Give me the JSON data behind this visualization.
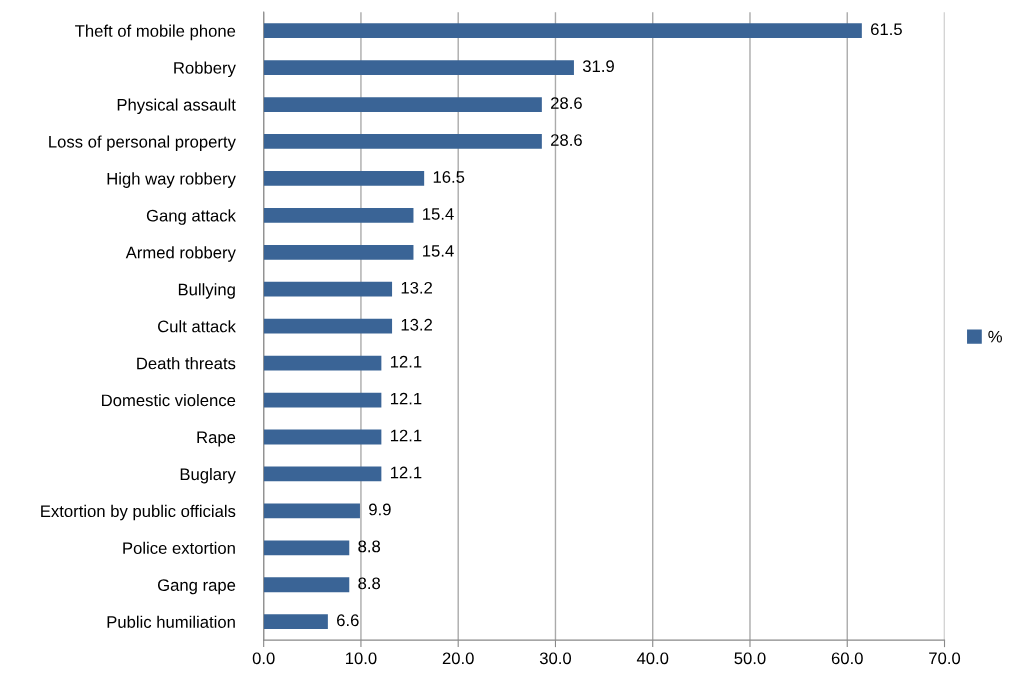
{
  "chart_data": {
    "type": "bar",
    "orientation": "horizontal",
    "categories": [
      "Theft of mobile phone",
      "Robbery",
      "Physical assault",
      "Loss of personal property",
      "High way robbery",
      "Gang attack",
      "Armed robbery",
      "Bullying",
      "Cult attack",
      "Death threats",
      "Domestic violence",
      "Rape",
      "Buglary",
      "Extortion by public officials",
      "Police extortion",
      "Gang rape",
      "Public humiliation"
    ],
    "series": [
      {
        "name": "%",
        "color": "#3a6496",
        "values": [
          61.5,
          31.9,
          28.6,
          28.6,
          16.5,
          15.4,
          15.4,
          13.2,
          13.2,
          12.1,
          12.1,
          12.1,
          12.1,
          9.9,
          8.8,
          8.8,
          6.6
        ]
      }
    ],
    "xlim": [
      0,
      70
    ],
    "xticks": [
      {
        "value": 0,
        "label": "0.0"
      },
      {
        "value": 10,
        "label": "10.0"
      },
      {
        "value": 20,
        "label": "20.0"
      },
      {
        "value": 30,
        "label": "30.0"
      },
      {
        "value": 40,
        "label": "40.0"
      },
      {
        "value": 50,
        "label": "50.0"
      },
      {
        "value": 60,
        "label": "60.0"
      },
      {
        "value": 70,
        "label": "70.0"
      }
    ],
    "grid": "x",
    "legend": "right",
    "data_labels": true
  }
}
